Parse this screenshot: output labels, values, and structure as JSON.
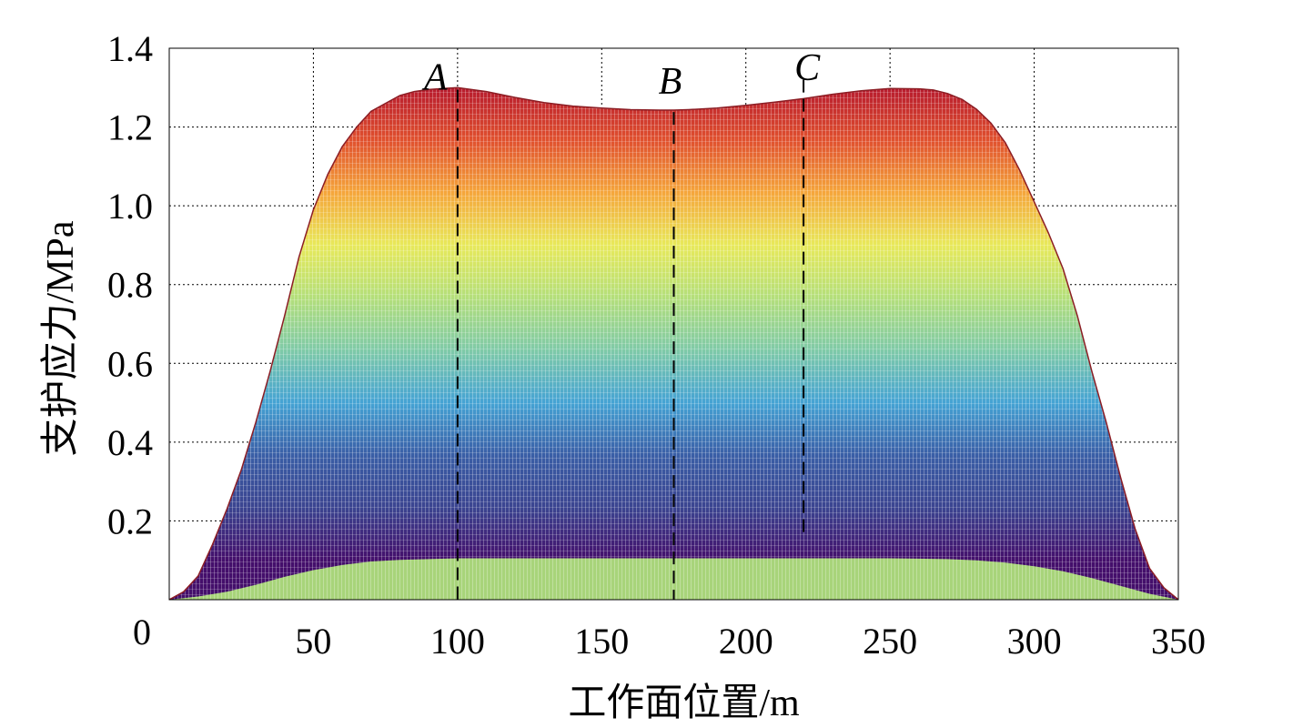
{
  "chart_data": {
    "type": "area",
    "xlabel": "工作面位置/m",
    "ylabel": "支护应力/MPa",
    "xlim": [
      0,
      350
    ],
    "ylim": [
      0,
      1.4
    ],
    "x_ticks": [
      50,
      100,
      150,
      200,
      250,
      300,
      350
    ],
    "y_ticks": [
      0.2,
      0.4,
      0.6,
      0.8,
      1.0,
      1.2,
      1.4
    ],
    "origin_label": "0",
    "x_tick_labels": [
      "50",
      "100",
      "150",
      "200",
      "250",
      "300",
      "350"
    ],
    "y_tick_labels": [
      "0.2",
      "0.4",
      "0.6",
      "0.8",
      "1.0",
      "1.2",
      "1.4"
    ],
    "grid": true,
    "envelope": {
      "x": [
        0,
        5,
        10,
        15,
        20,
        25,
        30,
        35,
        40,
        45,
        50,
        55,
        60,
        65,
        70,
        75,
        80,
        85,
        90,
        95,
        100,
        110,
        120,
        130,
        140,
        150,
        160,
        170,
        175,
        180,
        190,
        200,
        210,
        220,
        230,
        240,
        250,
        260,
        265,
        270,
        275,
        280,
        285,
        290,
        295,
        300,
        305,
        310,
        315,
        320,
        325,
        330,
        335,
        340,
        345,
        350
      ],
      "y": [
        0.0,
        0.02,
        0.06,
        0.14,
        0.23,
        0.33,
        0.45,
        0.58,
        0.72,
        0.87,
        0.99,
        1.08,
        1.15,
        1.2,
        1.24,
        1.26,
        1.28,
        1.29,
        1.295,
        1.298,
        1.3,
        1.29,
        1.275,
        1.262,
        1.253,
        1.248,
        1.244,
        1.243,
        1.243,
        1.244,
        1.248,
        1.255,
        1.263,
        1.272,
        1.283,
        1.292,
        1.298,
        1.297,
        1.294,
        1.285,
        1.27,
        1.245,
        1.21,
        1.16,
        1.09,
        1.01,
        0.93,
        0.84,
        0.72,
        0.58,
        0.45,
        0.31,
        0.18,
        0.08,
        0.03,
        0.0
      ]
    },
    "base": {
      "x": [
        0,
        10,
        20,
        30,
        40,
        50,
        60,
        70,
        80,
        90,
        100,
        150,
        200,
        250,
        270,
        280,
        290,
        300,
        310,
        320,
        330,
        340,
        350
      ],
      "y": [
        0.0,
        0.008,
        0.02,
        0.038,
        0.058,
        0.075,
        0.088,
        0.097,
        0.101,
        0.103,
        0.105,
        0.105,
        0.105,
        0.105,
        0.103,
        0.1,
        0.094,
        0.085,
        0.072,
        0.055,
        0.035,
        0.015,
        0.0
      ]
    },
    "color_scale": [
      "#440f6b",
      "#3b4490",
      "#3a5ea6",
      "#45a3d4",
      "#7fcaa8",
      "#b4df7a",
      "#e8e95a",
      "#f5a63b",
      "#e0502e",
      "#b71b2e"
    ],
    "base_color": "#a8d47a",
    "reference_lines": [
      {
        "label": "A",
        "x": 100
      },
      {
        "label": "B",
        "x": 175
      },
      {
        "label": "C",
        "x": 220
      }
    ]
  }
}
